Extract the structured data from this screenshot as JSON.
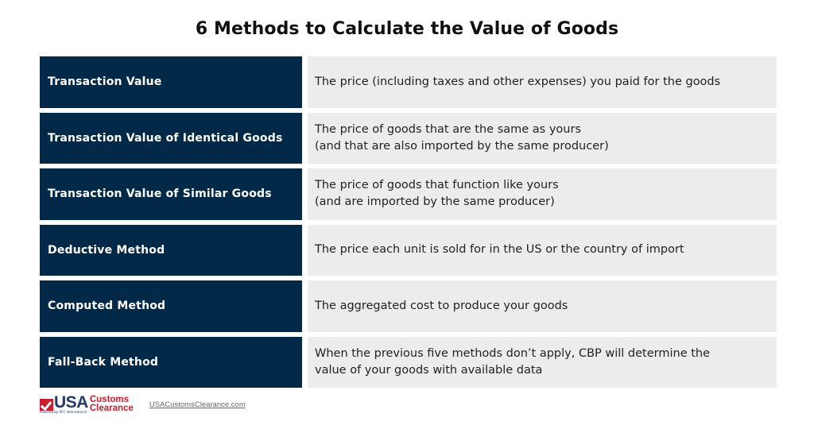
{
  "title": "6 Methods to Calculate the Value of Goods",
  "colors": {
    "header_cell_bg": "#022a48",
    "header_cell_text": "#ffffff",
    "description_cell_bg": "#ececec",
    "brand_red": "#c8202f",
    "brand_blue": "#1f3a6b"
  },
  "methods": [
    {
      "name": "Transaction Value",
      "description": "The price (including taxes and other expenses) you paid for the goods"
    },
    {
      "name": "Transaction Value of Identical Goods",
      "description": "The price of goods that are the same as yours\n(and that are also imported by the same producer)"
    },
    {
      "name": "Transaction Value of Similar Goods",
      "description": "The price of goods that function like yours\n(and are imported by the same producer)"
    },
    {
      "name": "Deductive Method",
      "description": "The price each unit is sold for in the US or the country of import"
    },
    {
      "name": "Computed Method",
      "description": "The aggregated cost to produce your goods"
    },
    {
      "name": "Fall-Back Method",
      "description": "When the previous five methods don’t apply, CBP will determine the\nvalue of your goods with available data"
    }
  ],
  "footer": {
    "logo": {
      "icon": "check-icon",
      "usa": "USA",
      "line1": "Customs",
      "line2": "Clearance",
      "powered_by": "Powered by AFC International"
    },
    "link_text": "USACustomsClearance.com"
  }
}
